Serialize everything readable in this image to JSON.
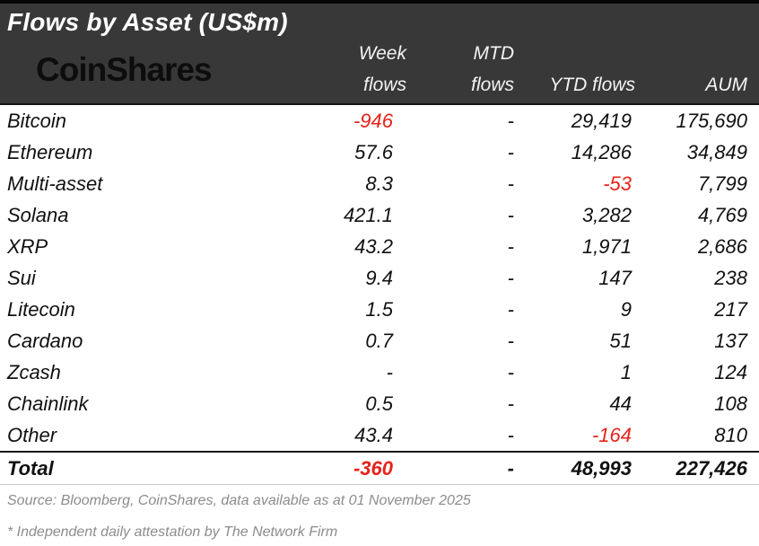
{
  "chart_data": {
    "type": "table",
    "title": "Flows by Asset (US$m)",
    "columns": [
      "Asset",
      "Week flows",
      "MTD flows",
      "YTD flows",
      "AUM"
    ],
    "rows": [
      {
        "asset": "Bitcoin",
        "week": "-946",
        "mtd": "-",
        "ytd": "29,419",
        "aum": "175,690"
      },
      {
        "asset": "Ethereum",
        "week": "57.6",
        "mtd": "-",
        "ytd": "14,286",
        "aum": "34,849"
      },
      {
        "asset": "Multi-asset",
        "week": "8.3",
        "mtd": "-",
        "ytd": "-53",
        "aum": "7,799"
      },
      {
        "asset": "Solana",
        "week": "421.1",
        "mtd": "-",
        "ytd": "3,282",
        "aum": "4,769"
      },
      {
        "asset": "XRP",
        "week": "43.2",
        "mtd": "-",
        "ytd": "1,971",
        "aum": "2,686"
      },
      {
        "asset": "Sui",
        "week": "9.4",
        "mtd": "-",
        "ytd": "147",
        "aum": "238"
      },
      {
        "asset": "Litecoin",
        "week": "1.5",
        "mtd": "-",
        "ytd": "9",
        "aum": "217"
      },
      {
        "asset": "Cardano",
        "week": "0.7",
        "mtd": "-",
        "ytd": "51",
        "aum": "137"
      },
      {
        "asset": "Zcash",
        "week": "-",
        "mtd": "-",
        "ytd": "1",
        "aum": "124"
      },
      {
        "asset": "Chainlink",
        "week": "0.5",
        "mtd": "-",
        "ytd": "44",
        "aum": "108"
      },
      {
        "asset": "Other",
        "week": "43.4",
        "mtd": "-",
        "ytd": "-164",
        "aum": "810"
      }
    ],
    "total": {
      "asset": "Total",
      "week": "-360",
      "mtd": "-",
      "ytd": "48,993",
      "aum": "227,426"
    }
  },
  "header": {
    "title": "Flows by Asset (US$m)",
    "logo_text": "CoinShares",
    "col_week_line1": "Week",
    "col_week_line2": "flows",
    "col_mtd_line1": "MTD",
    "col_mtd_line2": "flows",
    "col_ytd": "YTD flows",
    "col_aum": "AUM"
  },
  "footer": {
    "source": "Source: Bloomberg, CoinShares, data available as at 01 November 2025",
    "attestation": "* Independent daily attestation by The Network Firm"
  },
  "colors": {
    "header_bg": "#383838",
    "top_bar": "#060606",
    "negative_red": "#e8221a",
    "footer_gray": "#8c8c8c"
  }
}
